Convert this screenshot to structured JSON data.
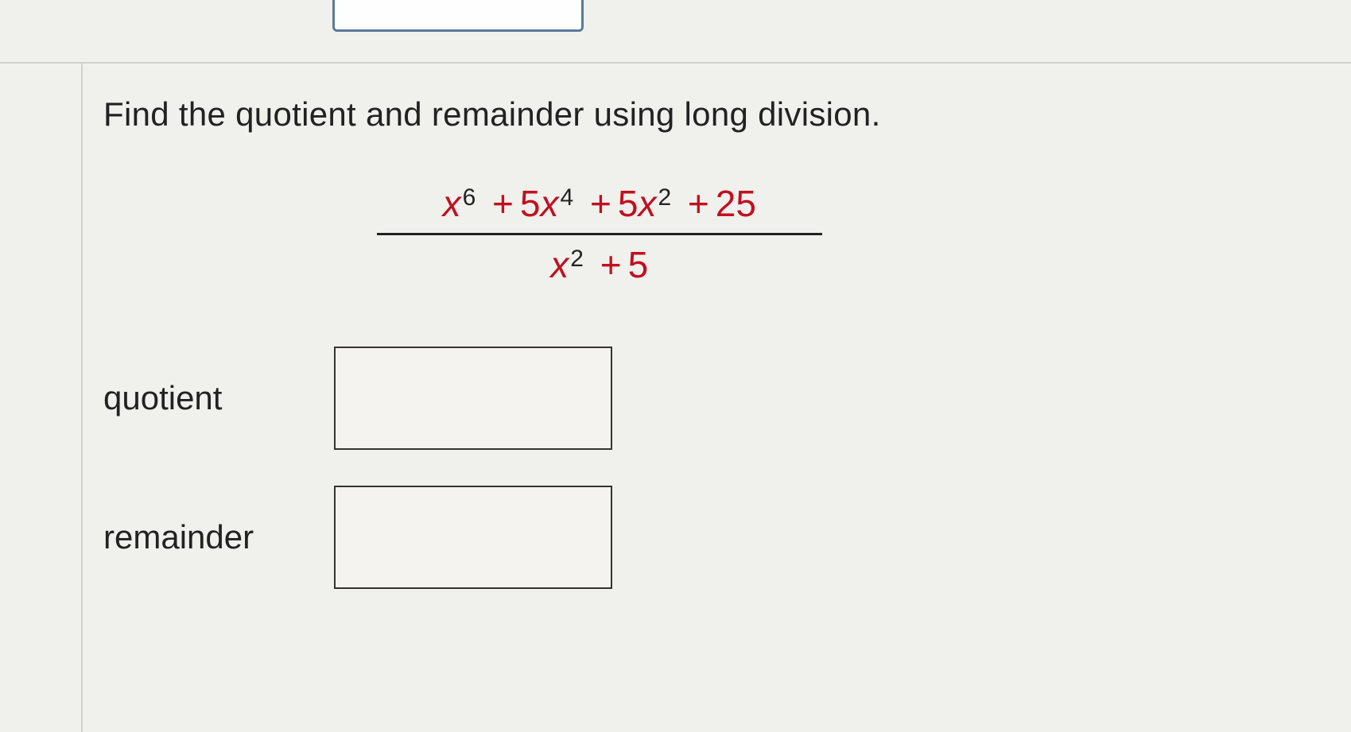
{
  "instruction": "Find the quotient and remainder using long division.",
  "expression": {
    "numerator_terms": [
      {
        "var": "x",
        "exp": "6"
      },
      {
        "op": "+",
        "coef": "5",
        "var": "x",
        "exp": "4"
      },
      {
        "op": "+",
        "coef": "5",
        "var": "x",
        "exp": "2"
      },
      {
        "op": "+",
        "const": "25"
      }
    ],
    "denominator_terms": [
      {
        "var": "x",
        "exp": "2"
      },
      {
        "op": "+",
        "const": "5"
      }
    ]
  },
  "answers": {
    "quotient_label": "quotient",
    "remainder_label": "remainder"
  },
  "colors": {
    "background": "#f0f0ed",
    "text": "#222222",
    "accent_red": "#c01020",
    "input_border": "#5a7a9a",
    "divider": "#d0d0cc",
    "box_border": "#333333",
    "box_fill": "#f4f3f0"
  },
  "fonts": {
    "body_size_pt": 42,
    "math_size_pt": 46,
    "exponent_size_pt": 30
  }
}
